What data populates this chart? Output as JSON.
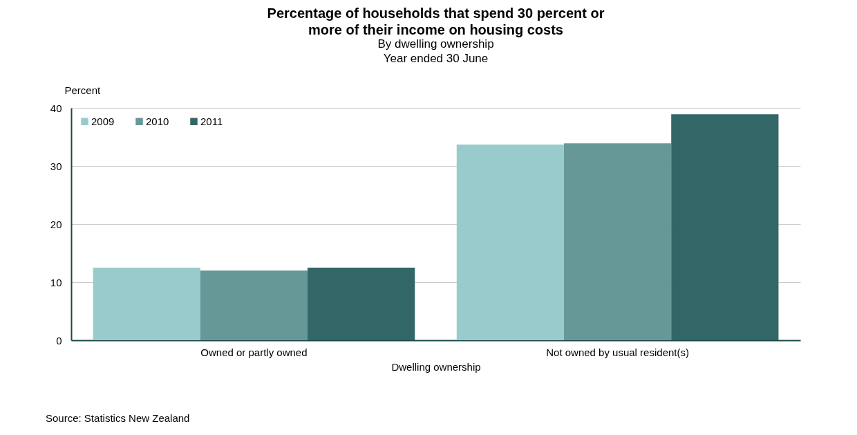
{
  "chart_data": {
    "type": "bar",
    "title": "Percentage of households that spend 30 percent or more of their income on housing costs",
    "subtitle": "By dwelling ownership\nYear ended 30 June",
    "xlabel": "Dwelling ownership",
    "ylabel": "Percent",
    "categories": [
      "Owned or partly owned",
      "Not owned by usual resident(s)"
    ],
    "series": [
      {
        "name": "2009",
        "color": "#9acbcc",
        "values": [
          12.5,
          33.7
        ]
      },
      {
        "name": "2010",
        "color": "#669898",
        "values": [
          12.0,
          33.9
        ]
      },
      {
        "name": "2011",
        "color": "#336666",
        "values": [
          12.5,
          38.9
        ]
      }
    ],
    "ylim": [
      0,
      40
    ],
    "yticks": [
      0,
      10,
      20,
      30,
      40
    ],
    "grid": "y",
    "legend": "top left",
    "annotations": [
      "Source: Statistics New Zealand"
    ]
  }
}
